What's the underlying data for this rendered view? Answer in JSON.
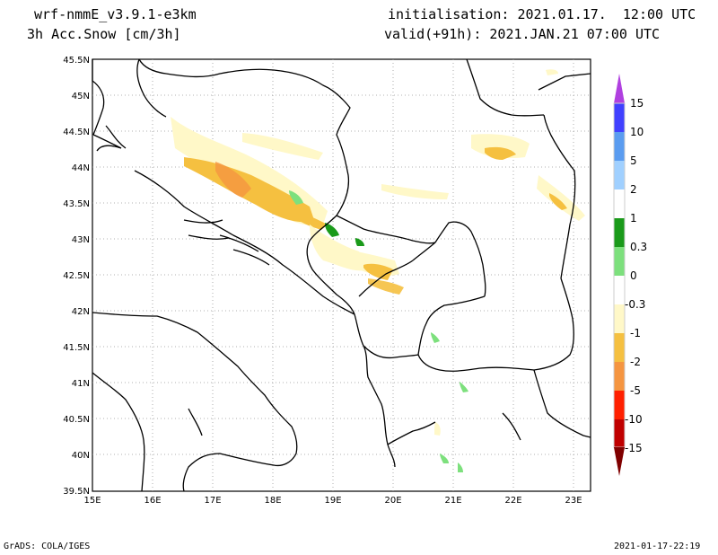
{
  "header": {
    "model": "wrf-nmmE_v3.9.1-e3km",
    "field": "3h Acc.Snow [cm/3h]",
    "init": "initialisation: 2021.01.17.  12:00 UTC",
    "valid": "valid(+91h): 2021.JAN.21 07:00 UTC"
  },
  "map": {
    "lat_labels": [
      "45.5N",
      "45N",
      "44.5N",
      "44N",
      "43.5N",
      "43N",
      "42.5N",
      "42N",
      "41.5N",
      "41N",
      "40.5N",
      "40N",
      "39.5N"
    ],
    "lon_labels": [
      "15E",
      "16E",
      "17E",
      "18E",
      "19E",
      "20E",
      "21E",
      "22E",
      "23E"
    ],
    "lat_range": [
      39.5,
      45.5
    ],
    "lon_range": [
      15,
      23.3
    ],
    "grid": "dotted"
  },
  "colorbar": {
    "labels": [
      "15",
      "10",
      "5",
      "2",
      "1",
      "0.3",
      "0",
      "-0.3",
      "-1",
      "-2",
      "-5",
      "-10",
      "-15"
    ],
    "colors": [
      "#4040ff",
      "#5a9cf0",
      "#a0d0ff",
      "#ffffff",
      "#1a9a1a",
      "#7de07d",
      "#ffffff",
      "#fff8c8",
      "#f5c040",
      "#f59540",
      "#ff2000",
      "#c00000",
      "#800000"
    ],
    "top_arrow_color": "#b040e0",
    "bottom_arrow_color": "#800000"
  },
  "footer": {
    "left": "GrADS: COLA/IGES",
    "right": "2021-01-17-22:19"
  }
}
